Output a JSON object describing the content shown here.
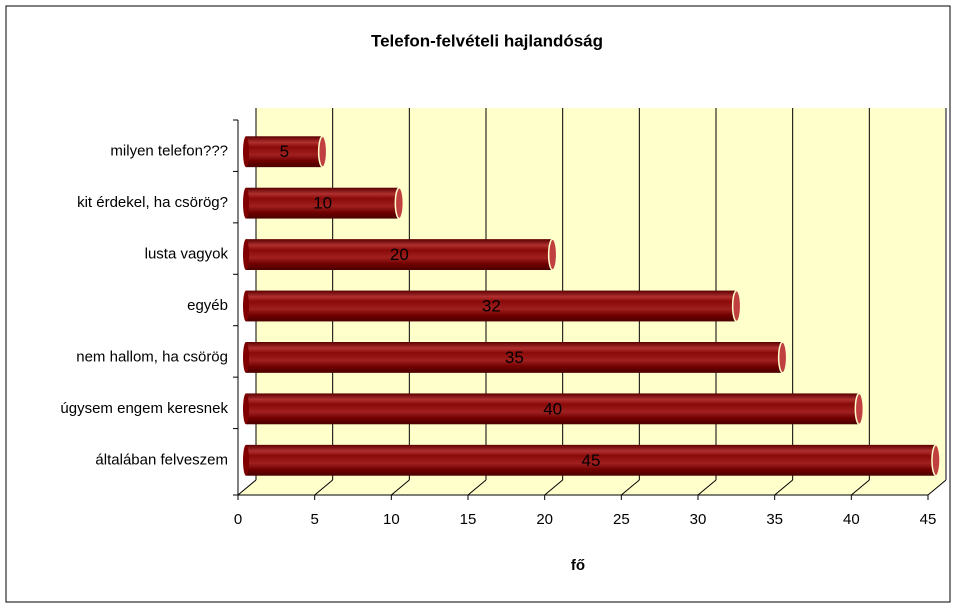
{
  "chart_data": {
    "type": "bar",
    "orientation": "horizontal",
    "title": "Telefon-felvételi hajlandóság",
    "categories": [
      "milyen telefon???",
      "kit érdekel, ha csörög?",
      "lusta vagyok",
      "egyéb",
      "nem hallom, ha csörög",
      "úgysem engem keresnek",
      "általában felveszem"
    ],
    "values": [
      5,
      10,
      20,
      32,
      35,
      40,
      45
    ],
    "color": "#800000",
    "x_label": "fő",
    "xlim": [
      0,
      45
    ],
    "xticks": [
      0,
      5,
      10,
      15,
      20,
      25,
      30,
      35,
      40,
      45
    ],
    "grid": true
  }
}
